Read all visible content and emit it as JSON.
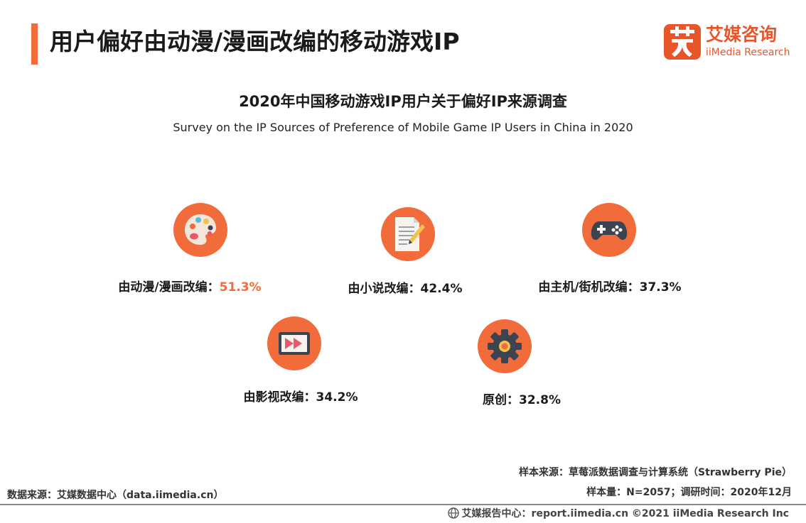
{
  "header": {
    "title": "用户偏好由动漫/漫画改编的移动游戏IP"
  },
  "logo": {
    "cn": "艾媒咨询",
    "en": "iiMedia Research",
    "brand_color": "#e8552b"
  },
  "accent_color": "#f26b3a",
  "chart_data": {
    "type": "icon-stat",
    "title": "2020年中国移动游戏IP用户关于偏好IP来源调查",
    "subtitle": "Survey on the IP Sources of Preference of Mobile Game IP Users in China in 2020",
    "unit": "%",
    "items": [
      {
        "label": "由动漫/漫画改编：",
        "value": 51.3,
        "display": "51.3%",
        "icon": "palette-icon",
        "highlight": true
      },
      {
        "label": "由小说改编：",
        "value": 42.4,
        "display": "42.4%",
        "icon": "document-pencil-icon",
        "highlight": false
      },
      {
        "label": "由主机/街机改编：",
        "value": 37.3,
        "display": "37.3%",
        "icon": "gamepad-icon",
        "highlight": false
      },
      {
        "label": "由影视改编：",
        "value": 34.2,
        "display": "34.2%",
        "icon": "video-play-icon",
        "highlight": false
      },
      {
        "label": "原创：",
        "value": 32.8,
        "display": "32.8%",
        "icon": "gear-icon",
        "highlight": false
      }
    ]
  },
  "notes": {
    "sample_source": "样本来源：草莓派数据调查与计算系统（Strawberry Pie）",
    "sample_size": "样本量：N=2057；调研时间：2020年12月",
    "data_source": "数据来源：艾媒数据中心（data.iimedia.cn）"
  },
  "footer": {
    "text": "艾媒报告中心：report.iimedia.cn ©2021  iiMedia Research  Inc"
  }
}
